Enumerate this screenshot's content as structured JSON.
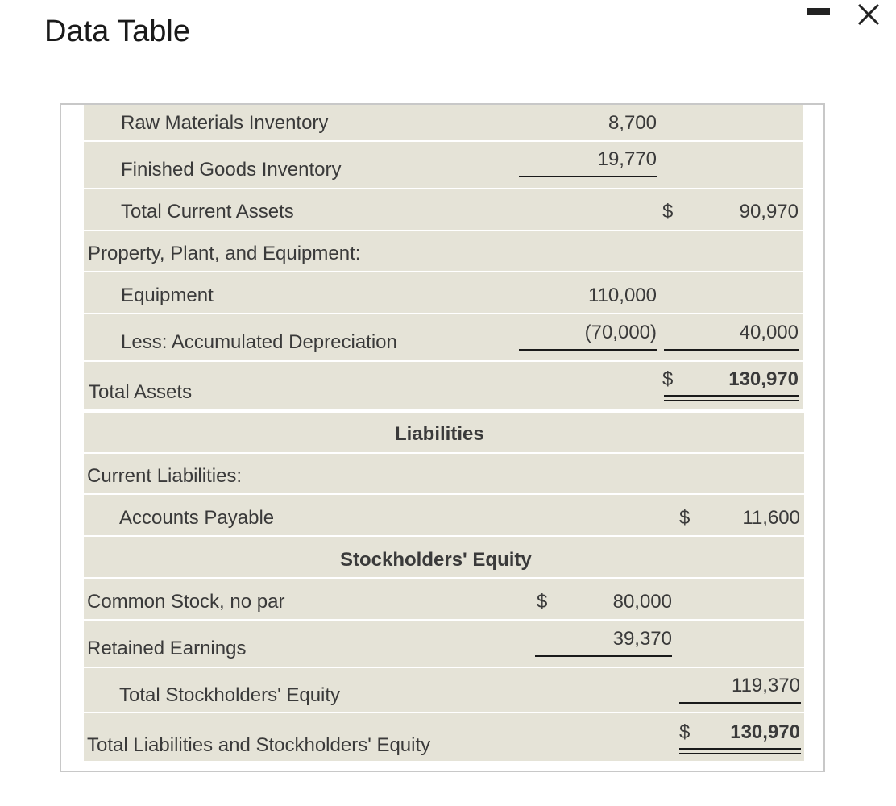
{
  "window": {
    "title": "Data Table"
  },
  "rows": {
    "raw_materials": {
      "label": "Raw Materials Inventory",
      "amount": "8,700"
    },
    "finished_goods": {
      "label": "Finished Goods Inventory",
      "amount": "19,770"
    },
    "total_current_assets": {
      "label": "Total Current Assets",
      "dollar": "$",
      "total": "90,970"
    },
    "ppe_header": {
      "label": "Property, Plant, and Equipment:"
    },
    "equipment": {
      "label": "Equipment",
      "amount": "110,000"
    },
    "accum_depr": {
      "label": "Less: Accumulated Depreciation",
      "amount": "(70,000)",
      "total": "40,000"
    },
    "total_assets": {
      "label": "Total Assets",
      "dollar": "$",
      "total": "130,970"
    },
    "liabilities_header": {
      "label": "Liabilities"
    },
    "current_liabilities": {
      "label": "Current Liabilities:"
    },
    "accounts_payable": {
      "label": "Accounts Payable",
      "dollar": "$",
      "total": "11,600"
    },
    "equity_header": {
      "label": "Stockholders' Equity"
    },
    "common_stock": {
      "label": "Common Stock, no par",
      "dollar": "$",
      "amount": "80,000"
    },
    "retained_earnings": {
      "label": "Retained Earnings",
      "amount": "39,370"
    },
    "total_se": {
      "label": "Total Stockholders' Equity",
      "total": "119,370"
    },
    "total_le": {
      "label": "Total Liabilities and Stockholders' Equity",
      "dollar": "$",
      "total": "130,970"
    }
  },
  "colors": {
    "row_background": "#e5e3d7",
    "text": "#3a3a3a",
    "frame_border": "#c8c8c8"
  }
}
